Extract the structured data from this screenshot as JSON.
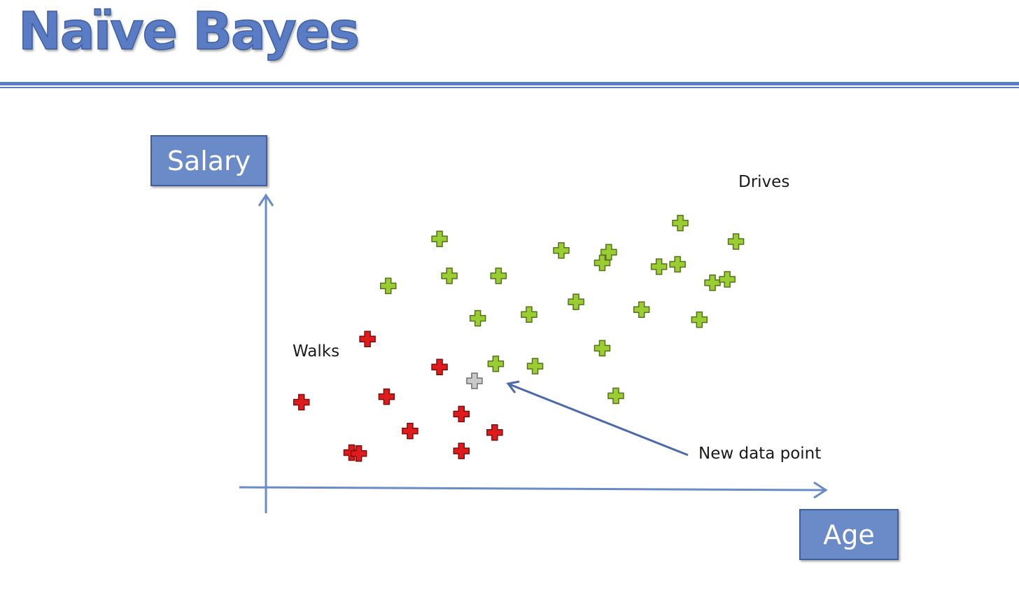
{
  "title": "Naïve Bayes",
  "colors": {
    "accent": "#5a7cc4",
    "walks": "#e01b1b",
    "drives": "#9acd32",
    "new_point": "#c9c9c9"
  },
  "chart_data": {
    "type": "scatter",
    "xlabel": "Age",
    "ylabel": "Salary",
    "xlim": [
      0,
      100
    ],
    "ylim": [
      0,
      100
    ],
    "grid": false,
    "series": [
      {
        "name": "Walks",
        "color": "#e01b1b",
        "x": [
          6.5,
          18.6,
          22.1,
          15.7,
          31.8,
          35.8,
          41.9,
          26.4,
          35.8,
          17.0
        ],
        "y": [
          29.5,
          51.4,
          31.4,
          12.0,
          41.7,
          25.4,
          19.0,
          19.5,
          12.6,
          11.7
        ]
      },
      {
        "name": "Drives",
        "color": "#9acd32",
        "x": [
          22.4,
          31.8,
          33.6,
          42.6,
          54.1,
          62.8,
          75.9,
          86.1,
          72.0,
          81.8,
          38.8,
          48.2,
          56.8,
          68.8,
          79.4,
          61.6,
          75.4,
          64.1,
          42.1,
          49.3,
          61.6,
          84.5
        ],
        "y": [
          69.8,
          86.1,
          73.3,
          73.3,
          82.1,
          81.5,
          91.6,
          85.2,
          76.5,
          70.9,
          58.6,
          59.9,
          64.3,
          61.6,
          58.1,
          48.2,
          77.3,
          31.7,
          42.8,
          42.0,
          77.8,
          72.1
        ]
      }
    ],
    "new_point": {
      "x": 38.2,
      "y": 36.9
    },
    "annotations": {
      "walks_label": "Walks",
      "drives_label": "Drives",
      "new_point_label": "New data point"
    }
  }
}
